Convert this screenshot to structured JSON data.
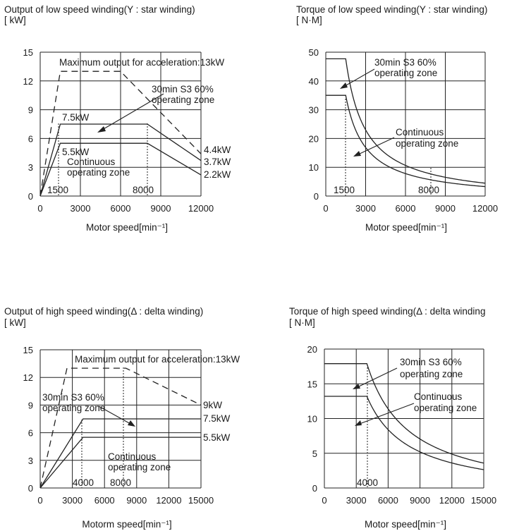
{
  "chart_data": [
    {
      "type": "line",
      "title_line1": "Output of low speed winding(Y : star winding)",
      "title_line2": "[ kW]",
      "xlabel": "Motor speed[min⁻¹]",
      "xlim": [
        0,
        12000
      ],
      "ylim": [
        0,
        15
      ],
      "xticks": [
        "0",
        "3000",
        "6000",
        "9000",
        "12000"
      ],
      "yticks": [
        "0",
        "3",
        "6",
        "9",
        "12",
        "15"
      ],
      "series": [
        {
          "style": "dashed",
          "x": [
            0,
            1500,
            6000,
            12000
          ],
          "y": [
            0,
            13,
            13,
            4.4
          ]
        },
        {
          "style": "solid",
          "x": [
            0,
            1500,
            8000,
            12000
          ],
          "y": [
            0,
            7.5,
            7.5,
            3.7
          ]
        },
        {
          "style": "solid",
          "x": [
            0,
            1500,
            8000,
            12000
          ],
          "y": [
            0,
            5.5,
            5.5,
            2.2
          ]
        }
      ],
      "annotations": [
        {
          "text": "Maximum output for acceleration:13kW"
        },
        {
          "text": "30min S3 60%"
        },
        {
          "text": "operating zone"
        },
        {
          "text": "7.5kW"
        },
        {
          "text": "5.5kW"
        },
        {
          "text": "Continuous"
        },
        {
          "text": "operating zone"
        },
        {
          "text": "4.4kW"
        },
        {
          "text": "3.7kW"
        },
        {
          "text": "2.2kW"
        },
        {
          "text": "1500"
        },
        {
          "text": "8000"
        }
      ]
    },
    {
      "type": "line",
      "title_line1": "Torque of low speed winding(Y : star winding)",
      "title_line2": "[ N·M]",
      "xlabel": "Motor speed[min⁻¹]",
      "xlim": [
        0,
        12000
      ],
      "ylim": [
        0,
        50
      ],
      "xticks": [
        "0",
        "3000",
        "6000",
        "9000",
        "12000"
      ],
      "yticks": [
        "0",
        "10",
        "20",
        "30",
        "40",
        "50"
      ],
      "series": [
        {
          "style": "solid",
          "x": [
            0,
            1500,
            2000,
            3000,
            4000,
            6000,
            8000,
            10000,
            12000
          ],
          "y": [
            47.7,
            47.7,
            35.8,
            23.9,
            17.9,
            11.9,
            8.9,
            6.2,
            3.5
          ]
        },
        {
          "style": "solid",
          "x": [
            0,
            1500,
            2000,
            3000,
            4000,
            6000,
            8000,
            10000,
            12000
          ],
          "y": [
            35,
            35,
            26.3,
            17.5,
            13.1,
            8.8,
            6.6,
            4.4,
            1.8
          ]
        }
      ],
      "annotations": [
        {
          "text": "30min S3 60%"
        },
        {
          "text": "operating zone"
        },
        {
          "text": "Continuous"
        },
        {
          "text": "operating zone"
        },
        {
          "text": "1500"
        },
        {
          "text": "8000"
        }
      ]
    },
    {
      "type": "line",
      "title_line1": "Output of high speed winding(Δ : delta winding)",
      "title_line2": "[ kW]",
      "xlabel": "Motorm speed[min⁻¹]",
      "xlim": [
        0,
        15000
      ],
      "ylim": [
        0,
        15
      ],
      "xticks": [
        "0",
        "3000",
        "6000",
        "9000",
        "12000",
        "15000"
      ],
      "yticks": [
        "0",
        "3",
        "6",
        "9",
        "12",
        "15"
      ],
      "series": [
        {
          "style": "dashed",
          "x": [
            0,
            2500,
            8000,
            15000
          ],
          "y": [
            0,
            13,
            13,
            9
          ]
        },
        {
          "style": "solid",
          "x": [
            0,
            4000,
            15000
          ],
          "y": [
            0,
            7.5,
            7.5
          ]
        },
        {
          "style": "solid",
          "x": [
            0,
            4000,
            15000
          ],
          "y": [
            0,
            5.5,
            5.5
          ]
        }
      ],
      "annotations": [
        {
          "text": "Maximum output for acceleration:13kW"
        },
        {
          "text": "30min S3 60%"
        },
        {
          "text": "operating zone"
        },
        {
          "text": "Continuous"
        },
        {
          "text": "operating zone"
        },
        {
          "text": "9kW"
        },
        {
          "text": "7.5kW"
        },
        {
          "text": "5.5kW"
        },
        {
          "text": "4000"
        },
        {
          "text": "8000"
        }
      ]
    },
    {
      "type": "line",
      "title_line1": "Torque of high speed winding(Δ : delta winding",
      "title_line2": "[ N·M]",
      "xlabel": "Motor speed[min⁻¹]",
      "xlim": [
        0,
        15000
      ],
      "ylim": [
        0,
        20
      ],
      "xticks": [
        "0",
        "3000",
        "6000",
        "9000",
        "12000",
        "15000"
      ],
      "yticks": [
        "0",
        "5",
        "10",
        "15",
        "20"
      ],
      "series": [
        {
          "style": "solid",
          "x": [
            0,
            4000,
            5000,
            6000,
            7000,
            8000,
            10000,
            12000,
            15000
          ],
          "y": [
            17.9,
            17.9,
            14.3,
            11.9,
            10.2,
            8.9,
            7.2,
            6.0,
            4.5
          ]
        },
        {
          "style": "solid",
          "x": [
            0,
            4000,
            5000,
            6000,
            7000,
            8000,
            10000,
            12000,
            15000
          ],
          "y": [
            13.2,
            13.2,
            10.5,
            8.8,
            7.5,
            6.6,
            5.3,
            4.4,
            3.5
          ]
        }
      ],
      "annotations": [
        {
          "text": "30min S3 60%"
        },
        {
          "text": "operating zone"
        },
        {
          "text": "Continuous"
        },
        {
          "text": "operating zone"
        },
        {
          "text": "4000"
        }
      ]
    }
  ]
}
